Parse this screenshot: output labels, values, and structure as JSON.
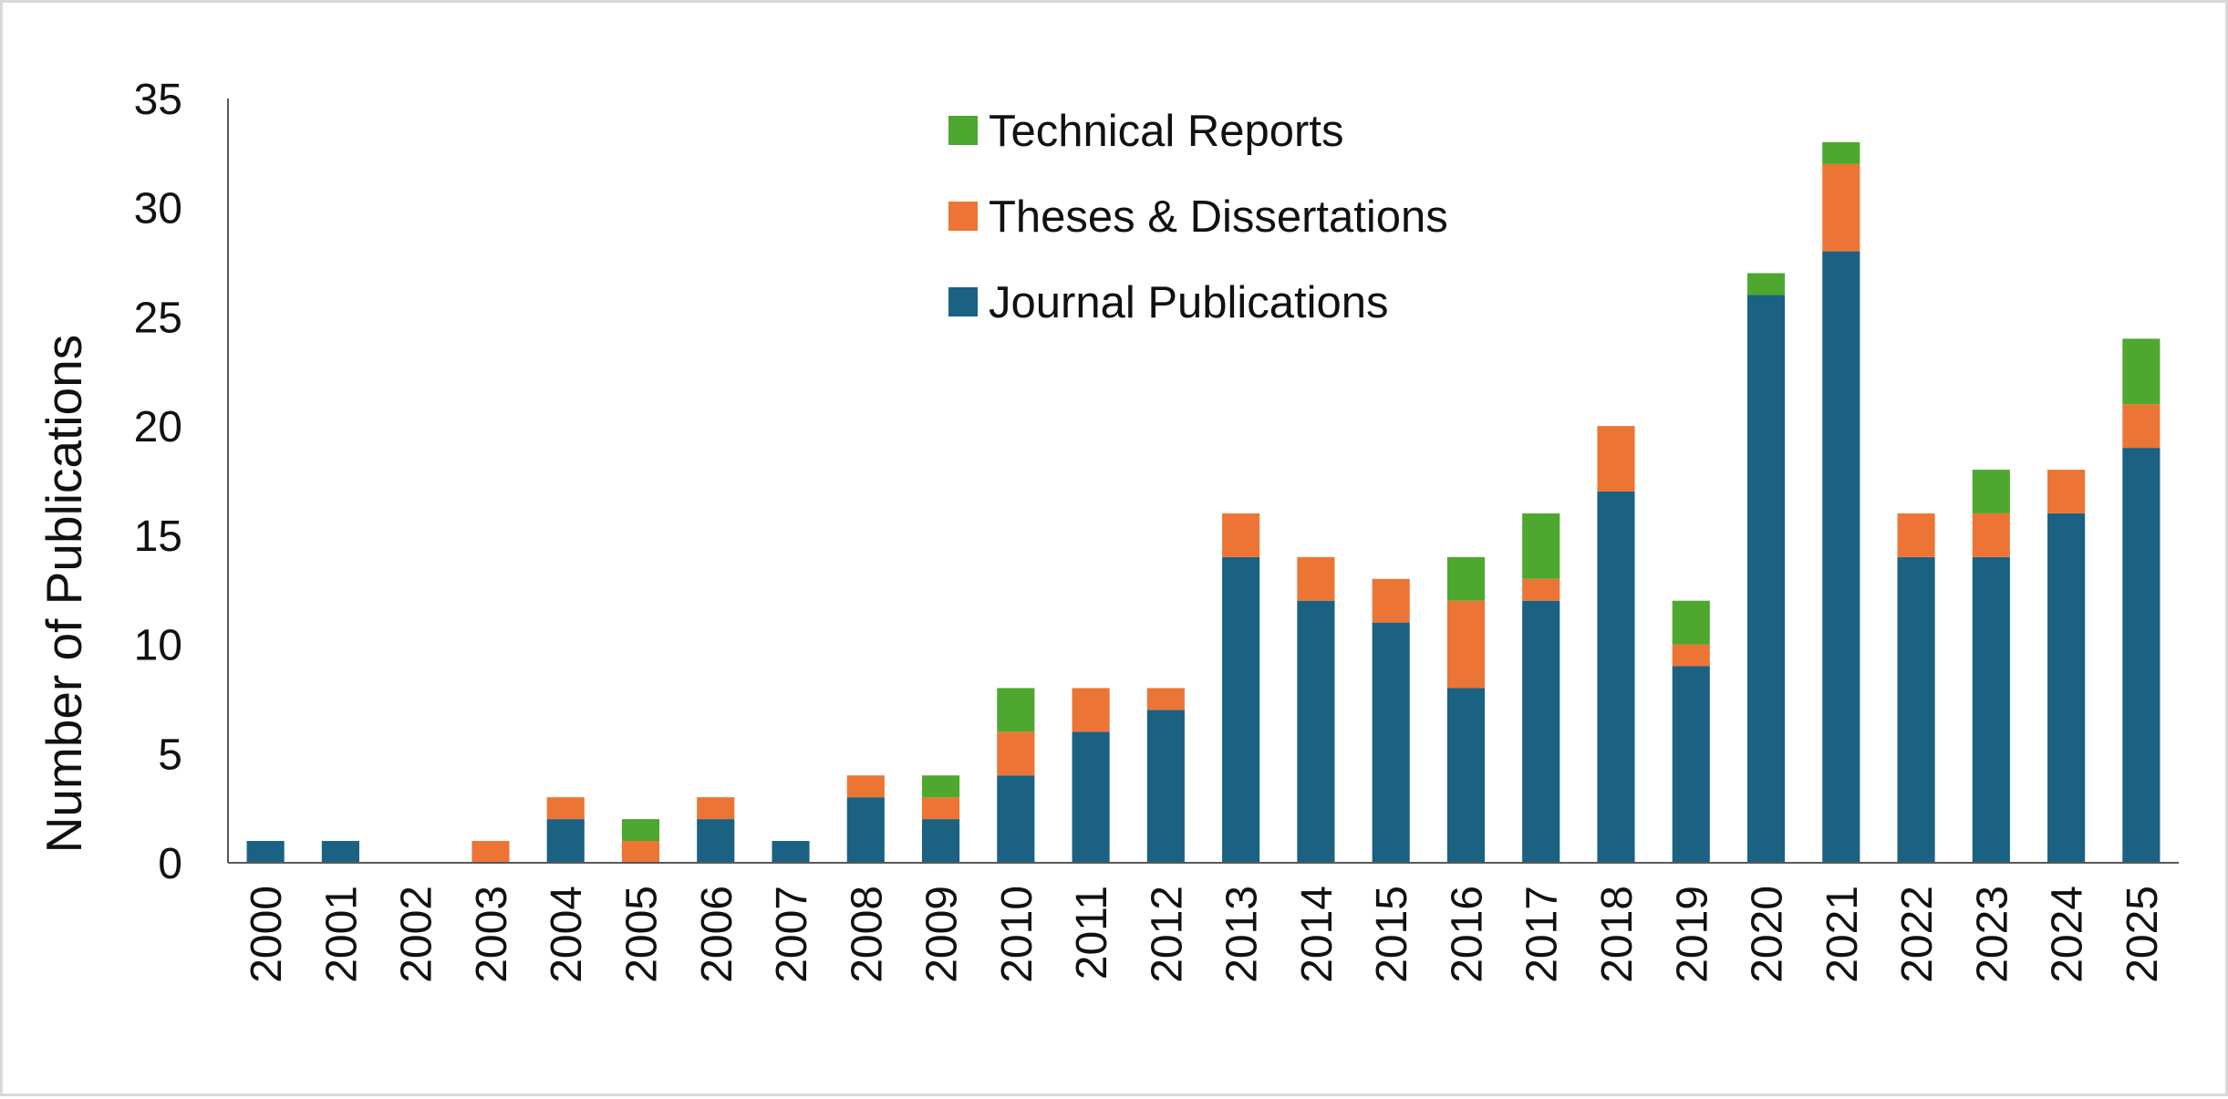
{
  "chart_data": {
    "type": "bar",
    "stacked": true,
    "title": "",
    "xlabel": "",
    "ylabel": "Number of Publications",
    "ylim": [
      0,
      35
    ],
    "yticks": [
      0,
      5,
      10,
      15,
      20,
      25,
      30,
      35
    ],
    "grid": false,
    "legend_position": "top-center",
    "categories": [
      "2000",
      "2001",
      "2002",
      "2003",
      "2004",
      "2005",
      "2006",
      "2007",
      "2008",
      "2009",
      "2010",
      "2011",
      "2012",
      "2013",
      "2014",
      "2015",
      "2016",
      "2017",
      "2018",
      "2019",
      "2020",
      "2021",
      "2022",
      "2023",
      "2024",
      "2025"
    ],
    "series": [
      {
        "name": "Journal Publications",
        "color": "#1a6182",
        "values": [
          1,
          1,
          0,
          0,
          2,
          0,
          2,
          1,
          3,
          2,
          4,
          6,
          7,
          14,
          12,
          11,
          8,
          12,
          17,
          9,
          26,
          28,
          14,
          14,
          16,
          19
        ]
      },
      {
        "name": "Theses & Dissertations",
        "color": "#ec7535",
        "values": [
          0,
          0,
          0,
          1,
          1,
          1,
          1,
          0,
          1,
          1,
          2,
          2,
          1,
          2,
          2,
          2,
          4,
          1,
          3,
          1,
          0,
          4,
          2,
          2,
          2,
          2
        ]
      },
      {
        "name": "Technical Reports",
        "color": "#4ea72e",
        "values": [
          0,
          0,
          0,
          0,
          0,
          1,
          0,
          0,
          0,
          1,
          2,
          0,
          0,
          0,
          0,
          0,
          2,
          3,
          0,
          2,
          1,
          1,
          0,
          2,
          0,
          3
        ]
      }
    ],
    "legend_order": [
      "Technical Reports",
      "Theses & Dissertations",
      "Journal Publications"
    ]
  }
}
